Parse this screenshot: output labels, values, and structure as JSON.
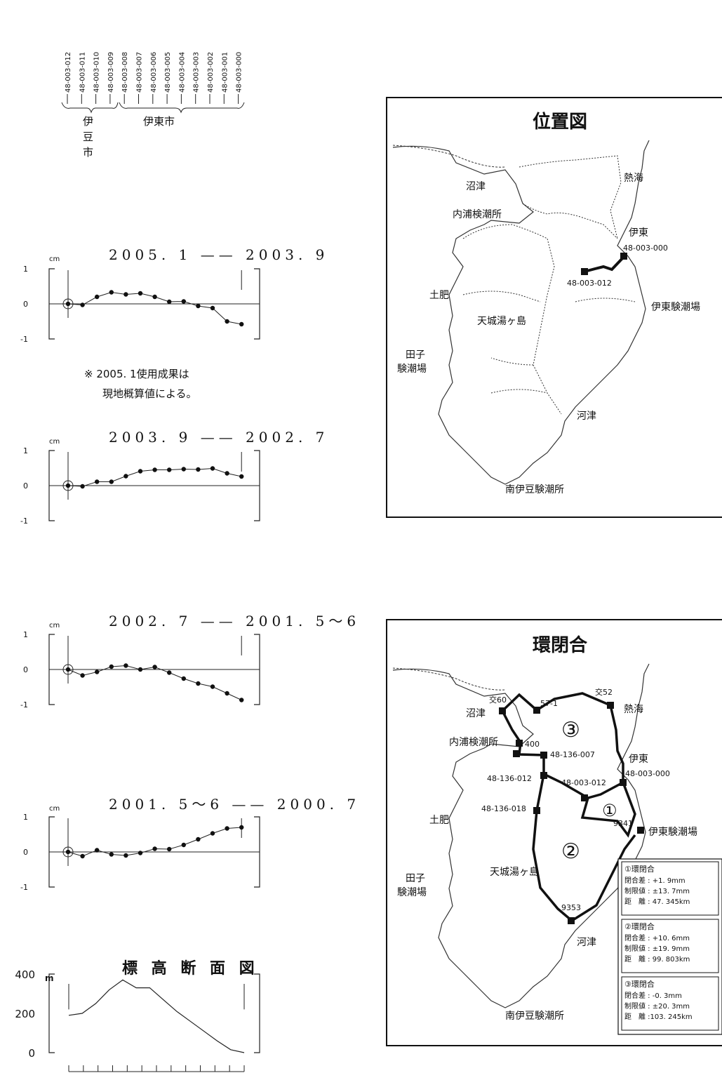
{
  "benchmarks": {
    "ids": [
      "48-003-012",
      "48-003-011",
      "48-003-010",
      "48-003-009",
      "48-003-008",
      "48-003-007",
      "48-003-006",
      "48-003-005",
      "48-003-004",
      "48-003-003",
      "48-003-002",
      "48-003-001",
      "48-003-000"
    ],
    "groups": [
      {
        "label": "伊\n豆\n市"
      },
      {
        "label": "伊東市"
      }
    ]
  },
  "chart_data": [
    {
      "type": "line",
      "title": "2005. 1 —— 2003. 9",
      "ylabel": "cm",
      "ylim": [
        -1,
        1
      ],
      "yticks": [
        "1",
        "0",
        "-1"
      ],
      "x": [
        1,
        2,
        3,
        4,
        5,
        6,
        7,
        8,
        9,
        10,
        11,
        12,
        13
      ],
      "series": [
        {
          "values": [
            0,
            -0.03,
            0.2,
            0.33,
            0.27,
            0.3,
            0.2,
            0.06,
            0.07,
            -0.06,
            -0.12,
            -0.5,
            -0.58
          ]
        }
      ],
      "note": "※ 2005. 1使用成果は\n現地概算値による。"
    },
    {
      "type": "line",
      "title": "2003. 9 —— 2002. 7",
      "ylabel": "cm",
      "ylim": [
        -1,
        1
      ],
      "yticks": [
        "1",
        "0",
        "-1"
      ],
      "x": [
        1,
        2,
        3,
        4,
        5,
        6,
        7,
        8,
        9,
        10,
        11,
        12,
        13
      ],
      "series": [
        {
          "values": [
            0,
            -0.02,
            0.11,
            0.11,
            0.27,
            0.41,
            0.45,
            0.45,
            0.47,
            0.46,
            0.49,
            0.35,
            0.26
          ]
        }
      ]
    },
    {
      "type": "line",
      "title": "2002. 7 —— 2001. 5〜6",
      "ylabel": "cm",
      "ylim": [
        -1,
        1
      ],
      "yticks": [
        "1",
        "0",
        "-1"
      ],
      "x": [
        1,
        2,
        3,
        4,
        5,
        6,
        7,
        8,
        9,
        10,
        11,
        12,
        13
      ],
      "series": [
        {
          "values": [
            0,
            -0.17,
            -0.07,
            0.08,
            0.11,
            0,
            0.07,
            -0.09,
            -0.26,
            -0.4,
            -0.49,
            -0.68,
            -0.87
          ]
        }
      ]
    },
    {
      "type": "line",
      "title": "2001. 5〜6 —— 2000. 7",
      "ylabel": "cm",
      "ylim": [
        -1,
        1
      ],
      "yticks": [
        "1",
        "0",
        "-1"
      ],
      "x": [
        1,
        2,
        3,
        4,
        5,
        6,
        7,
        8,
        9,
        10,
        11,
        12,
        13
      ],
      "series": [
        {
          "values": [
            0,
            -0.12,
            0.05,
            -0.07,
            -0.1,
            -0.03,
            0.09,
            0.08,
            0.2,
            0.36,
            0.53,
            0.67,
            0.7
          ]
        }
      ]
    },
    {
      "type": "area",
      "title": "標 高 断 面 図",
      "ylabel": "m",
      "ylim": [
        0,
        400
      ],
      "yticks": [
        "400",
        "200",
        "0"
      ],
      "x": [
        0,
        1,
        2,
        3,
        4,
        5,
        6,
        7,
        8,
        9,
        10,
        11,
        12,
        13
      ],
      "series": [
        {
          "values": [
            190,
            200,
            250,
            320,
            370,
            330,
            330,
            270,
            210,
            160,
            110,
            60,
            15,
            0
          ]
        }
      ]
    }
  ],
  "location_map": {
    "title": "位置図",
    "places": {
      "numazu": "沼津",
      "atami": "熱海",
      "uchiura": "内浦検潮所",
      "ito": "伊東",
      "bm_000": "48-003-000",
      "bm_012": "48-003-012",
      "toi": "土肥",
      "ito_tide": "伊東験潮場",
      "amagi": "天城湯ヶ島",
      "tago": "田子\n験潮場",
      "kawazu": "河津",
      "minamiizu": "南伊豆験潮所"
    }
  },
  "loop_map": {
    "title": "環閉合",
    "labels": {
      "k60": "交60",
      "k57": "57-1",
      "k52": "交52",
      "numazu": "沼津",
      "atami": "熱海",
      "uchiura": "内浦検潮所",
      "n400": "400",
      "bm136_007": "48-136-007",
      "ito": "伊東",
      "bm_000": "48-003-000",
      "bm136_012": "48-136-012",
      "bm_012": "48-003-012",
      "bm136_018": "48-136-018",
      "n9341": "9341",
      "toi": "土肥",
      "ito_tide": "伊東験潮場",
      "amagi": "天城湯ヶ島",
      "tago": "田子\n験潮場",
      "n9353": "9353",
      "kawazu": "河津",
      "minamiizu": "南伊豆験潮所",
      "loop1": "①",
      "loop2": "②",
      "loop3": "③"
    },
    "legend": [
      {
        "head": "①環閉合",
        "lines": [
          "閉合差 : +1. 9mm",
          "制限値 : ±13. 7mm",
          "距　離 : 47. 345km"
        ]
      },
      {
        "head": "②環閉合",
        "lines": [
          "閉合差 : +10. 6mm",
          "制限値 : ±19. 9mm",
          "距　離 : 99. 803km"
        ]
      },
      {
        "head": "③環閉合",
        "lines": [
          "閉合差 : -0. 3mm",
          "制限値 : ±20. 3mm",
          "距　離 :103. 245km"
        ]
      }
    ]
  }
}
